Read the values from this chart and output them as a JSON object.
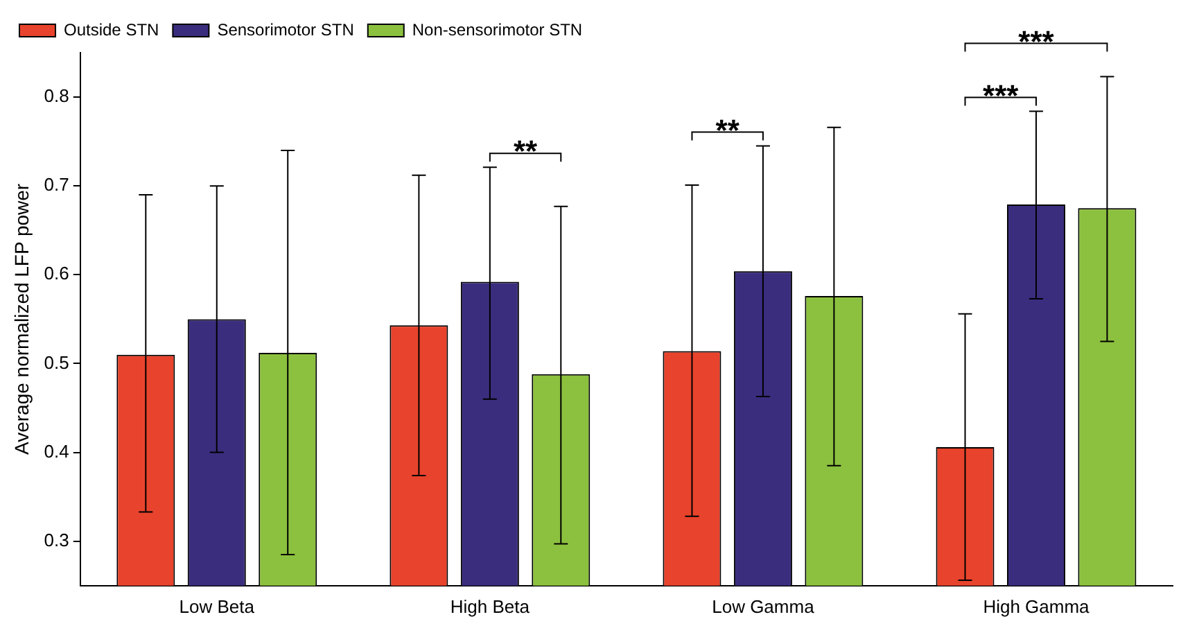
{
  "chart_data": {
    "type": "bar",
    "ylabel": "Average normalized LFP power",
    "categories": [
      "Low Beta",
      "High Beta",
      "Low Gamma",
      "High Gamma"
    ],
    "series": [
      {
        "name": "Outside STN",
        "color": "#e8432c",
        "values": [
          0.51,
          0.543,
          0.514,
          0.406
        ],
        "errors": [
          [
            0.333,
            0.69
          ],
          [
            0.374,
            0.712
          ],
          [
            0.328,
            0.701
          ],
          [
            0.256,
            0.556
          ]
        ]
      },
      {
        "name": "Sensorimotor STN",
        "color": "#3b2d7e",
        "values": [
          0.55,
          0.592,
          0.604,
          0.679
        ],
        "errors": [
          [
            0.4,
            0.7
          ],
          [
            0.46,
            0.721
          ],
          [
            0.463,
            0.745
          ],
          [
            0.573,
            0.784
          ]
        ]
      },
      {
        "name": "Non-sensorimotor STN",
        "color": "#8cc13f",
        "values": [
          0.512,
          0.488,
          0.576,
          0.675
        ],
        "errors": [
          [
            0.285,
            0.74
          ],
          [
            0.297,
            0.677
          ],
          [
            0.385,
            0.766
          ],
          [
            0.525,
            0.823
          ]
        ]
      }
    ],
    "ylim": [
      0.25,
      0.85
    ],
    "yticks": [
      0.3,
      0.4,
      0.5,
      0.6,
      0.7,
      0.8
    ],
    "grid": false,
    "legend": "top left",
    "annotations": [
      "**",
      "**",
      "***",
      "***"
    ]
  }
}
